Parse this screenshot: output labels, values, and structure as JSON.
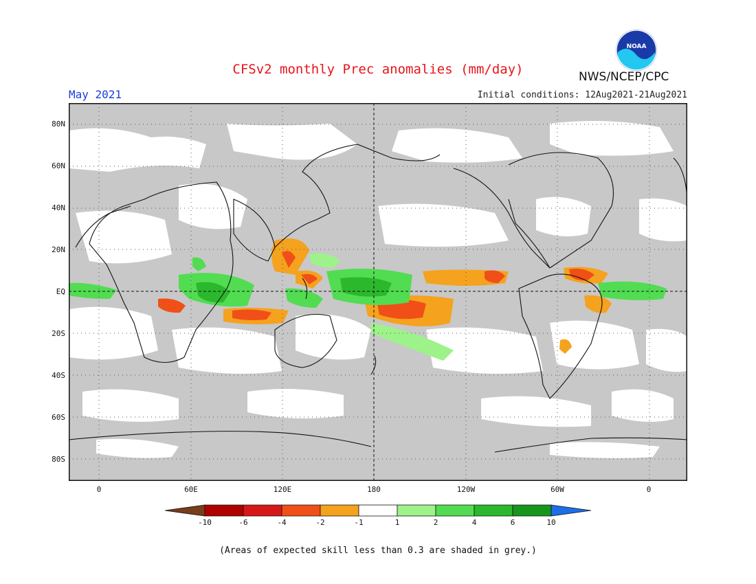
{
  "header": {
    "title": "CFSv2 monthly Prec anomalies (mm/day)",
    "month": "May 2021",
    "initial_conditions": "Initial conditions: 12Aug2021-21Aug2021",
    "agency": "NWS/NCEP/CPC",
    "logo_text": "NOAA"
  },
  "map": {
    "lat_labels": [
      "80N",
      "60N",
      "40N",
      "20N",
      "EQ",
      "20S",
      "40S",
      "60S",
      "80S"
    ],
    "lon_labels": [
      "0",
      "60E",
      "120E",
      "180",
      "120W",
      "60W",
      "0"
    ],
    "colors": {
      "grey_low_skill": "#c8c8c8",
      "no_anomaly": "#ffffff",
      "coast": "#111111"
    }
  },
  "legend": {
    "tick_labels": [
      "-10",
      "-6",
      "-4",
      "-2",
      "-1",
      "1",
      "2",
      "4",
      "6",
      "10"
    ],
    "bins": [
      {
        "range": "< -10",
        "color": "#7a3d1a"
      },
      {
        "range": "-10 to -6",
        "color": "#b00000"
      },
      {
        "range": "-6 to -4",
        "color": "#d81818"
      },
      {
        "range": "-4 to -2",
        "color": "#f05018"
      },
      {
        "range": "-2 to -1",
        "color": "#f5a21e"
      },
      {
        "range": "-1 to 1",
        "color": "#ffffff"
      },
      {
        "range": "1 to 2",
        "color": "#9df28a"
      },
      {
        "range": "2 to 4",
        "color": "#52dc52"
      },
      {
        "range": "4 to 6",
        "color": "#2cb82c"
      },
      {
        "range": "6 to 10",
        "color": "#16961c"
      },
      {
        "range": "> 10",
        "color": "#1e6ee8"
      }
    ]
  },
  "footnote": "(Areas of expected skill less than 0.3 are shaded in grey.)"
}
